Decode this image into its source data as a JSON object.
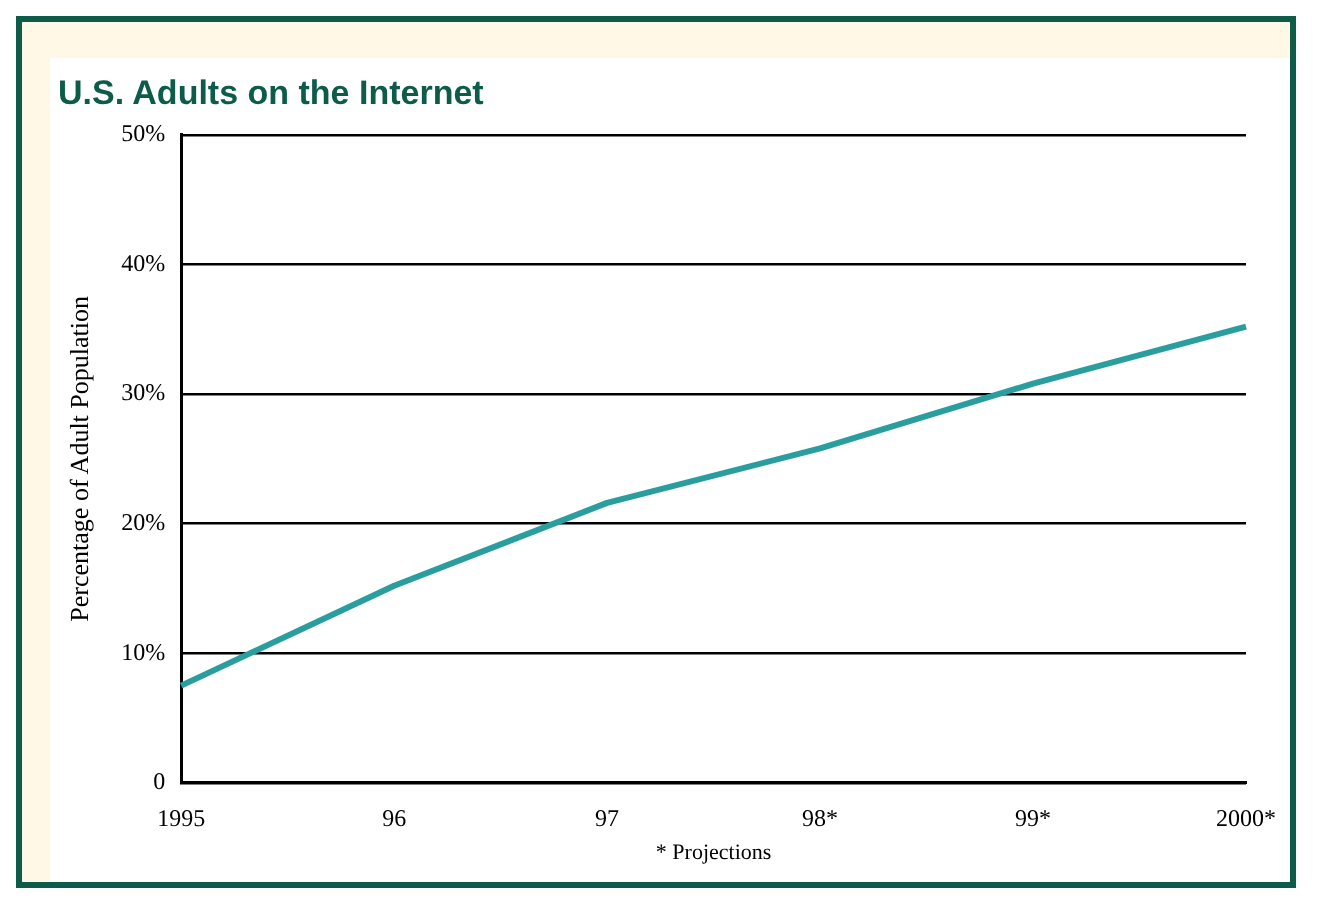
{
  "chart_data": {
    "type": "line",
    "title": "U.S. Adults on the Internet",
    "ylabel": "Percentage of Adult Population",
    "categories": [
      "1995",
      "96",
      "97",
      "98*",
      "99*",
      "2000*"
    ],
    "series": [
      {
        "color": "#2a9d9f",
        "values": [
          7.5,
          15.2,
          21.6,
          25.8,
          30.8,
          35.2
        ]
      }
    ],
    "ylim": [
      0,
      50
    ],
    "yticks": [
      {
        "value": 0,
        "label": "0"
      },
      {
        "value": 10,
        "label": "10%"
      },
      {
        "value": 20,
        "label": "20%"
      },
      {
        "value": 30,
        "label": "30%"
      },
      {
        "value": 40,
        "label": "40%"
      },
      {
        "value": 50,
        "label": "50%"
      }
    ],
    "grid": "y",
    "legend": false,
    "marker": "none",
    "line_style": "solid",
    "annotations": [
      "* Projections"
    ]
  }
}
